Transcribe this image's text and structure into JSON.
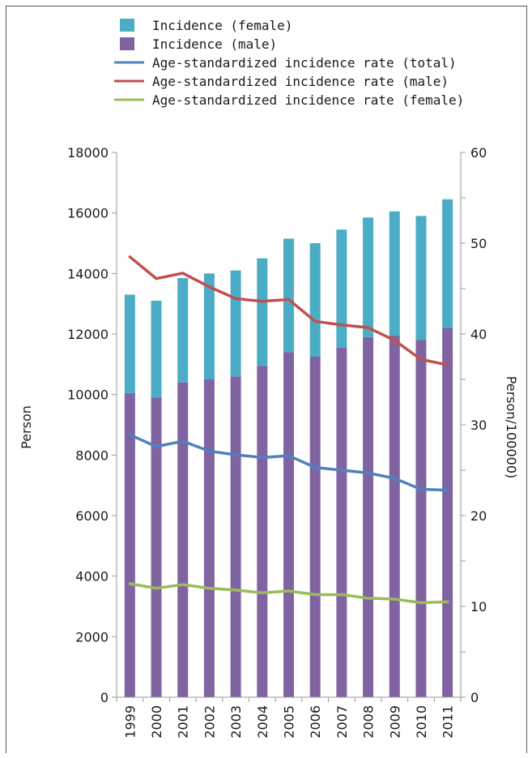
{
  "chart_data": {
    "type": "bar",
    "categories": [
      "1999",
      "2000",
      "2001",
      "2002",
      "2003",
      "2004",
      "2005",
      "2006",
      "2007",
      "2008",
      "2009",
      "2010",
      "2011"
    ],
    "bar_series": [
      {
        "name": "Incidence (female)",
        "color": "#4BACC6",
        "values": [
          3250,
          3200,
          3450,
          3500,
          3500,
          3550,
          3750,
          3750,
          3900,
          3950,
          4100,
          4100,
          4250
        ]
      },
      {
        "name": "Incidence (male)",
        "color": "#8064A2",
        "values": [
          10050,
          9900,
          10400,
          10500,
          10600,
          10950,
          11400,
          11250,
          11550,
          11900,
          11950,
          11800,
          12200
        ]
      }
    ],
    "line_series": [
      {
        "name": "Age-standardized incidence rate (total)",
        "color": "#4F81BD",
        "values": [
          28.9,
          27.6,
          28.2,
          27.1,
          26.7,
          26.4,
          26.6,
          25.3,
          25.0,
          24.7,
          24.1,
          22.9,
          22.8
        ]
      },
      {
        "name": "Age-standardized incidence rate (male)",
        "color": "#C0504D",
        "values": [
          48.5,
          46.1,
          46.7,
          45.2,
          43.9,
          43.6,
          43.8,
          41.4,
          41.0,
          40.7,
          39.3,
          37.2,
          36.6
        ]
      },
      {
        "name": "Age-standardized incidence rate (female)",
        "color": "#9BBB59",
        "values": [
          12.5,
          12.0,
          12.4,
          12.0,
          11.8,
          11.5,
          11.7,
          11.3,
          11.3,
          10.9,
          10.8,
          10.4,
          10.5
        ]
      }
    ],
    "legend": [
      {
        "label": "Incidence (female)",
        "kind": "box",
        "color": "#4BACC6"
      },
      {
        "label": "Incidence (male)",
        "kind": "box",
        "color": "#8064A2"
      },
      {
        "label": "Age-standardized incidence rate (total)",
        "kind": "line",
        "color": "#4F81BD"
      },
      {
        "label": "Age-standardized incidence rate (male)",
        "kind": "line",
        "color": "#C0504D"
      },
      {
        "label": "Age-standardized incidence rate (female)",
        "kind": "line",
        "color": "#9BBB59"
      }
    ],
    "ylabel": "Person",
    "y2label": "Person/100000)",
    "ylim": [
      0,
      18000
    ],
    "y2lim": [
      0,
      60
    ],
    "yticks": [
      0,
      2000,
      4000,
      6000,
      8000,
      10000,
      12000,
      14000,
      16000,
      18000
    ],
    "y2ticks": [
      0,
      10,
      20,
      30,
      40,
      50,
      60
    ],
    "legend_position": "top"
  }
}
